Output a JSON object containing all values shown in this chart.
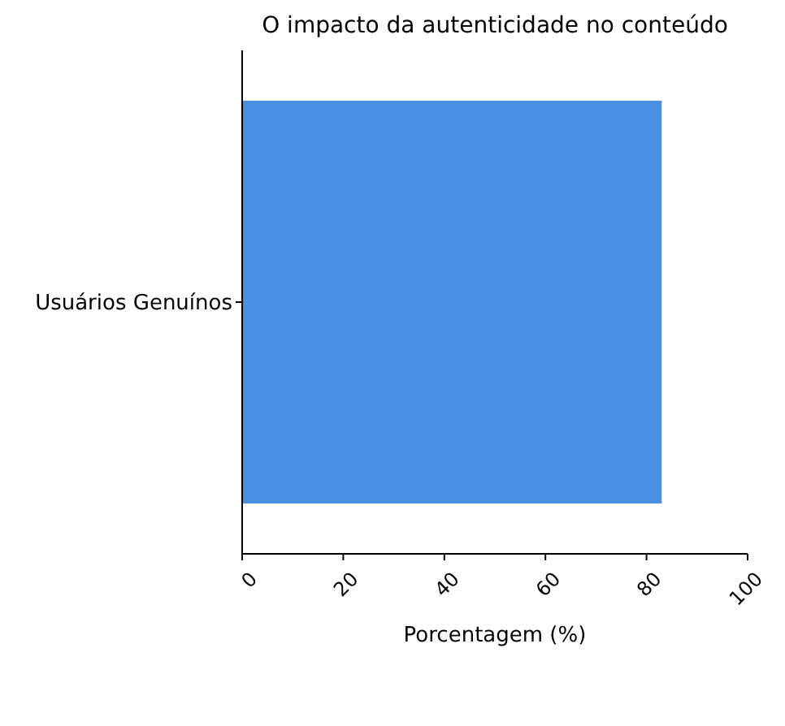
{
  "chart_data": {
    "type": "bar",
    "orientation": "horizontal",
    "title": "O impacto da autenticidade no conteúdo",
    "xlabel": "Porcentagem (%)",
    "categories": [
      "Usuários Genuínos"
    ],
    "values": [
      83
    ],
    "color": "#4a90e2",
    "xlim": [
      0,
      100
    ],
    "xticks": [
      0,
      20,
      40,
      60,
      80,
      100
    ],
    "grid": false
  }
}
